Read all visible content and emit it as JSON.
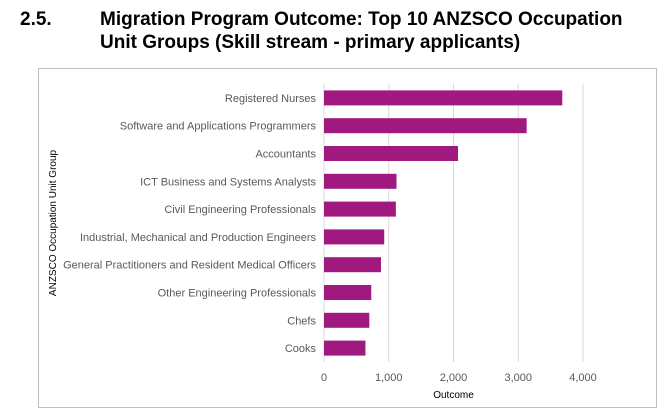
{
  "section": {
    "number": "2.5.",
    "title": "Migration Program Outcome: Top 10 ANZSCO Occupation Unit Groups (Skill stream - primary applicants)"
  },
  "chart_data": {
    "type": "bar",
    "orientation": "horizontal",
    "title": "",
    "xlabel": "Outcome",
    "ylabel": "ANZSCO Occupation Unit Group",
    "categories": [
      "Registered Nurses",
      "Software and Applications Programmers",
      "Accountants",
      "ICT Business and Systems Analysts",
      "Civil Engineering Professionals",
      "Industrial, Mechanical and Production Engineers",
      "General Practitioners and Resident Medical Officers",
      "Other Engineering Professionals",
      "Chefs",
      "Cooks"
    ],
    "values": [
      3680,
      3130,
      2070,
      1120,
      1110,
      930,
      880,
      730,
      700,
      640
    ],
    "xlim": [
      0,
      4000
    ],
    "xticks": [
      0,
      1000,
      2000,
      3000,
      4000
    ],
    "xtick_labels": [
      "0",
      "1,000",
      "2,000",
      "3,000",
      "4,000"
    ],
    "grid": true,
    "bar_color": "#A0197F",
    "grid_color": "#d9d9d9"
  }
}
